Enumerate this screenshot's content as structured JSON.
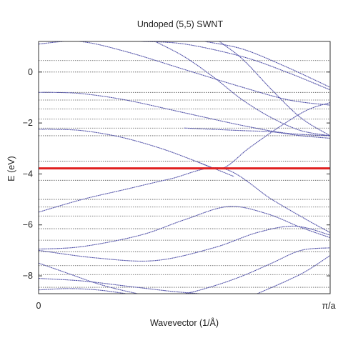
{
  "chart_data": {
    "type": "line",
    "title": "Undoped (5,5) SWNT",
    "xlabel": "Wavevector (1/Å)",
    "ylabel": "E (eV)",
    "xlim": [
      0,
      1
    ],
    "ylim": [
      -8.7,
      1.2
    ],
    "x_ticks": [
      {
        "value": 0,
        "label": "0"
      },
      {
        "value": 1,
        "label": "π/a"
      }
    ],
    "y_ticks": [
      {
        "value": 0,
        "label": "0"
      },
      {
        "value": -2,
        "label": "−2"
      },
      {
        "value": -4,
        "label": "−4"
      },
      {
        "value": -6,
        "label": "−6"
      },
      {
        "value": -8,
        "label": "−8"
      }
    ],
    "grid": "horizontal dotted lines",
    "horizontal_reference_levels": [
      0.45,
      0.0,
      -0.8,
      -1.1,
      -1.45,
      -1.85,
      -2.2,
      -2.5,
      -3.5,
      -4.25,
      -5.0,
      -5.3,
      -5.65,
      -6.15,
      -6.6,
      -7.05,
      -7.6,
      -7.95,
      -8.45
    ],
    "fermi_level": -3.78,
    "fermi_level_color": "#e02020",
    "band_color": "#5555aa",
    "bands": [
      {
        "x": [
          0,
          0.14,
          0.3,
          0.5,
          0.7,
          0.86,
          1
        ],
        "y": [
          1.1,
          1.2,
          0.8,
          0.1,
          -0.6,
          -1.1,
          -1.3
        ]
      },
      {
        "x": [
          0.35,
          0.5,
          0.7,
          0.85,
          1
        ],
        "y": [
          1.2,
          1.1,
          0.6,
          0.0,
          -0.7
        ]
      },
      {
        "x": [
          0.57,
          0.7,
          0.85,
          1
        ],
        "y": [
          1.2,
          0.9,
          0.2,
          -0.6
        ]
      },
      {
        "x": [
          0.62,
          0.7,
          0.8,
          0.9,
          1
        ],
        "y": [
          1.2,
          0.5,
          -0.7,
          -1.8,
          -2.5
        ]
      },
      {
        "x": [
          0.4,
          0.5,
          0.6,
          0.7,
          0.8,
          0.9,
          1
        ],
        "y": [
          1.2,
          0.6,
          -0.2,
          -1.1,
          -1.8,
          -2.3,
          -2.5
        ]
      },
      {
        "x": [
          0,
          0.05,
          0.15,
          0.3,
          0.5,
          0.7,
          0.85,
          1
        ],
        "y": [
          -0.8,
          -0.8,
          -0.85,
          -1.1,
          -1.6,
          -2.1,
          -2.4,
          -2.5
        ]
      },
      {
        "x": [
          0,
          0.05,
          0.15,
          0.28,
          0.42,
          0.55,
          0.67
        ],
        "y": [
          -2.25,
          -2.25,
          -2.3,
          -2.55,
          -3.0,
          -3.55,
          -4.1
        ]
      },
      {
        "x": [
          0.55,
          0.63,
          0.72,
          0.82,
          0.92,
          1
        ],
        "y": [
          -3.55,
          -3.78,
          -3.0,
          -2.2,
          -1.5,
          -1.2
        ]
      },
      {
        "x": [
          0,
          0.15,
          0.3,
          0.45,
          0.63,
          0.8,
          0.92,
          1
        ],
        "y": [
          -5.5,
          -5.0,
          -4.6,
          -4.2,
          -3.78,
          -5.0,
          -5.8,
          -6.3
        ]
      },
      {
        "x": [
          0,
          0.15,
          0.35,
          0.5,
          0.65,
          0.78,
          0.9,
          1
        ],
        "y": [
          -6.95,
          -6.85,
          -6.4,
          -5.8,
          -5.28,
          -5.55,
          -6.1,
          -6.5
        ]
      },
      {
        "x": [
          0,
          0.2,
          0.4,
          0.6,
          0.75,
          0.88,
          1
        ],
        "y": [
          -7.0,
          -7.3,
          -7.4,
          -6.9,
          -6.3,
          -6.05,
          -6.4
        ]
      },
      {
        "x": [
          0,
          0.1,
          0.2,
          0.3,
          0.4,
          0.5,
          0.6,
          0.7,
          0.8,
          0.9,
          1
        ],
        "y": [
          -7.5,
          -7.9,
          -8.3,
          -8.6,
          -8.8,
          -8.7,
          -8.4,
          -8.0,
          -7.5,
          -7.0,
          -6.9
        ]
      },
      {
        "x": [
          0,
          0.15,
          0.3,
          0.45,
          0.55
        ],
        "y": [
          -8.1,
          -8.2,
          -8.4,
          -8.6,
          -8.7
        ]
      },
      {
        "x": [
          0.75,
          0.85,
          0.92,
          1
        ],
        "y": [
          -8.7,
          -8.2,
          -7.8,
          -7.2
        ]
      },
      {
        "x": [
          0,
          0.1,
          0.2,
          0.3,
          0.35
        ],
        "y": [
          -8.55,
          -8.5,
          -8.55,
          -8.7,
          -8.8
        ]
      },
      {
        "x": [
          0.5,
          0.6,
          0.7,
          0.8,
          0.9,
          1
        ],
        "y": [
          -2.2,
          -2.25,
          -2.3,
          -2.35,
          -2.5,
          -2.6
        ]
      }
    ]
  }
}
